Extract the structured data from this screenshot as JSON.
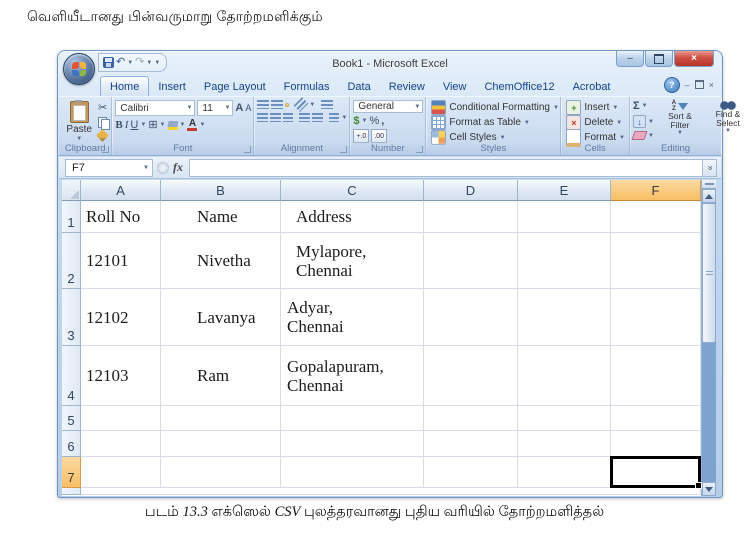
{
  "page": {
    "heading": "வெளியீடானது பின்வருமாறு தோற்றமளிக்கும்",
    "caption": {
      "fig_label": "படம்",
      "fig_number": "13.3",
      "text_before_csv": "எக்ஸெல்",
      "csv": "CSV",
      "text_after_csv": "புலத்தரவானது புதிய வரியில் தோற்றமளித்தல்"
    }
  },
  "window": {
    "title": "Book1 - Microsoft Excel"
  },
  "ribbon": {
    "tabs": [
      {
        "label": "Home",
        "active": true
      },
      {
        "label": "Insert"
      },
      {
        "label": "Page Layout"
      },
      {
        "label": "Formulas"
      },
      {
        "label": "Data"
      },
      {
        "label": "Review"
      },
      {
        "label": "View"
      },
      {
        "label": "ChemOffice12"
      },
      {
        "label": "Acrobat"
      }
    ],
    "groups": {
      "clipboard": {
        "label": "Clipboard",
        "paste": "Paste"
      },
      "font": {
        "label": "Font",
        "font_name": "Calibri",
        "font_size": "11",
        "bold": "B",
        "italic": "I",
        "underline": "U",
        "grow_font": "A",
        "shrink_font": "A"
      },
      "alignment": {
        "label": "Alignment"
      },
      "number": {
        "label": "Number",
        "format": "General",
        "currency": "$",
        "percent": "%",
        "comma": ","
      },
      "styles": {
        "label": "Styles",
        "items": [
          "Conditional Formatting",
          "Format as Table",
          "Cell Styles"
        ]
      },
      "cells": {
        "label": "Cells",
        "items": [
          "Insert",
          "Delete",
          "Format"
        ]
      },
      "editing": {
        "label": "Editing",
        "autosum": "Σ",
        "sort_filter": "Sort & Filter",
        "find_select": "Find & Select"
      }
    }
  },
  "formula_bar": {
    "name_box": "F7",
    "fx_label": "fx",
    "formula": ""
  },
  "sheet": {
    "columns": [
      "A",
      "B",
      "C",
      "D",
      "E",
      "F"
    ],
    "selected_column": "F",
    "selected_row": 7,
    "active_cell": "F7",
    "rows": [
      {
        "n": 1,
        "cells": {
          "A": "Roll No",
          "B": "Name",
          "C": "Address"
        }
      },
      {
        "n": 2,
        "cells": {
          "A": "12101",
          "B": "Nivetha",
          "C": "Mylapore,\nChennai"
        }
      },
      {
        "n": 3,
        "cells": {
          "A": "12102",
          "B": "Lavanya",
          "C": "Adyar,\nChennai"
        }
      },
      {
        "n": 4,
        "cells": {
          "A": "12103",
          "B": "Ram",
          "C": "Gopalapuram,\nChennai"
        }
      },
      {
        "n": 5,
        "cells": {}
      },
      {
        "n": 6,
        "cells": {}
      },
      {
        "n": 7,
        "cells": {}
      }
    ]
  },
  "icons": {
    "help": "?",
    "minimize": "–",
    "close": "×",
    "undo": "↶",
    "redo": "↷",
    "cut": "✂",
    "borders": "⊞",
    "fill_arrow": "↓",
    "increase_decimal": "+.0",
    "decrease_decimal": ".00",
    "scroll_chevron": "«"
  },
  "colors": {
    "selection_orange": "#F9BF66",
    "chrome_blue": "#BED3EC",
    "tab_text_blue": "#15428B",
    "gridline": "#D6DDE9",
    "header_border": "#9EB6CE",
    "close_red": "#B83227",
    "scroll_track": "#7FA3CF"
  }
}
